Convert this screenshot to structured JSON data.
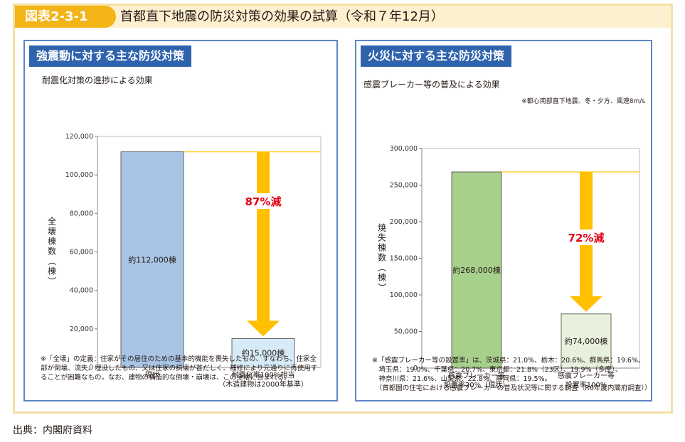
{
  "figure": {
    "label": "図表2-3-1",
    "title": "首都直下地震の防災対策の効果の試算（令和７年12月）"
  },
  "left_panel": {
    "title": "強震動に対する主な防災対策",
    "subtitle": "耐震化対策の進捗による効果",
    "note": "※「全壊」の定義：住家がその居住のための基本的機能を喪失したもの、すなわち、住家全部が倒壊、流失、埋没したもの、又は住家の損壊が甚だしく、補修により元通りに再使用することが困難なもの。なお、建物の構造的な倒壊・崩壊は、この全壊に含まれる。"
  },
  "right_panel": {
    "title": "火災に対する主な防災対策",
    "subtitle": "感震ブレーカー等の普及による効果",
    "condition": "※都心南部直下地震、冬・夕方、風速8m/s",
    "note_lines": [
      "※「感震ブレーカー等の設置率」は、茨城県：21.0%、栃木：20.6%、群馬県：19.6%、",
      "　埼玉県：19.0%、千葉県：20.7%、東京都：21.8%（23区）、19.9%（多摩）、",
      "　神奈川県：21.6%、山梨県：22.8%、静岡県：19.5%。",
      "　（首都圏の住宅における感震ブレーカーの普及状況等に関する調査（R6年度内閣府調査））"
    ]
  },
  "source": "出典：内閣府資料",
  "chart_data": [
    {
      "type": "bar",
      "ylabel": "全壊棟数（棟）",
      "ylim": [
        0,
        120000
      ],
      "yticks": [
        "0",
        "20,000",
        "40,000",
        "60,000",
        "80,000",
        "100,000",
        "120,000"
      ],
      "categories": [
        [
          "現状"
        ],
        [
          "耐震化率100%相当",
          "（木造建物は2000年基準）"
        ]
      ],
      "values": [
        112000,
        15000
      ],
      "bar_labels": [
        "約112,000棟",
        "約15,000棟"
      ],
      "bar_colors": [
        "#a9c5e5",
        "#d6ebf7"
      ],
      "reduction_label": "87%減",
      "grid": false
    },
    {
      "type": "bar",
      "ylabel": "焼失棟数（棟）",
      "ylim": [
        0,
        300000
      ],
      "yticks": [
        "0",
        "50,000",
        "100,000",
        "150,000",
        "200,000",
        "250,000",
        "300,000"
      ],
      "categories": [
        [
          "感震ブレーカー等",
          "設置率20%（現状）"
        ],
        [
          "感震ブレーカー等",
          "設置率100%"
        ]
      ],
      "values": [
        268000,
        74000
      ],
      "bar_labels": [
        "約268,000棟",
        "約74,000棟"
      ],
      "bar_colors": [
        "#a8d08d",
        "#e7f1dc"
      ],
      "reduction_label": "72%減",
      "grid": false
    }
  ],
  "colors": {
    "accent": "#f2b416",
    "panel_title_bg": "#2f63ad",
    "panel_border": "#5d86c5",
    "arrow": "#ffc000",
    "reduction_text": "#e60012"
  }
}
